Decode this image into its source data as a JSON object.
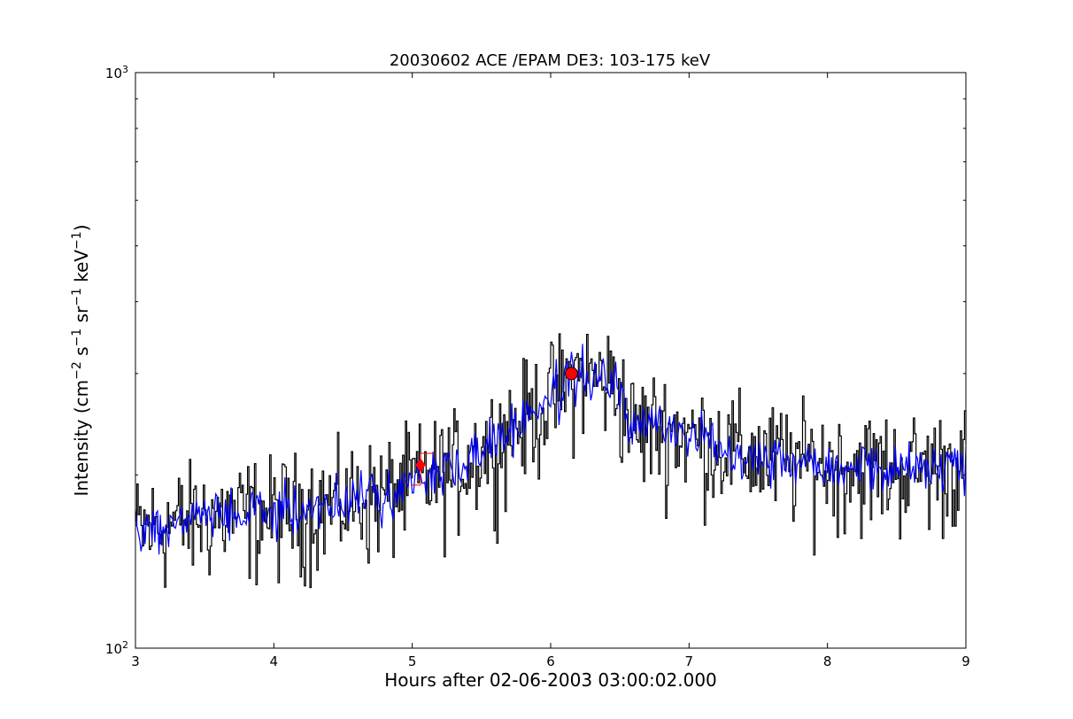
{
  "chart_data": {
    "type": "line",
    "title": "20030602 ACE /EPAM DE3: 103-175 keV",
    "xlabel": "Hours after 02-06-2003 03:00:02.000",
    "ylabel_parts": [
      "Intensity (cm",
      "−2",
      " s",
      "−1",
      " sr",
      "−1",
      " keV",
      "−1",
      ")"
    ],
    "xlim": [
      3,
      9
    ],
    "ylim": [
      100,
      1000
    ],
    "yscale": "log",
    "grid": false,
    "xticks": [
      3,
      4,
      5,
      6,
      7,
      8,
      9
    ],
    "xtick_labels": [
      "3",
      "4",
      "5",
      "6",
      "7",
      "8",
      "9"
    ],
    "ytick_major_labels": [
      {
        "value": 1000,
        "base": "10",
        "exp": "3"
      },
      {
        "value": 100,
        "base": "10",
        "exp": "2"
      }
    ],
    "series": [
      {
        "color": "#000000",
        "style": "steps",
        "trend": [
          [
            3.0,
            160
          ],
          [
            3.5,
            170
          ],
          [
            4.0,
            172
          ],
          [
            4.5,
            180
          ],
          [
            4.8,
            185
          ],
          [
            5.0,
            195
          ],
          [
            5.3,
            205
          ],
          [
            5.6,
            230
          ],
          [
            5.9,
            260
          ],
          [
            6.2,
            300
          ],
          [
            6.45,
            290
          ],
          [
            6.6,
            240
          ],
          [
            6.8,
            245
          ],
          [
            7.0,
            235
          ],
          [
            7.5,
            215
          ],
          [
            8.0,
            210
          ],
          [
            8.5,
            205
          ],
          [
            9.0,
            210
          ]
        ],
        "noise": 0.12
      },
      {
        "color": "#0000ff",
        "style": "line",
        "trend": [
          [
            3.0,
            160
          ],
          [
            3.5,
            170
          ],
          [
            4.0,
            172
          ],
          [
            4.5,
            180
          ],
          [
            4.8,
            185
          ],
          [
            5.0,
            195
          ],
          [
            5.3,
            205
          ],
          [
            5.6,
            230
          ],
          [
            5.9,
            260
          ],
          [
            6.2,
            300
          ],
          [
            6.45,
            290
          ],
          [
            6.6,
            240
          ],
          [
            6.8,
            245
          ],
          [
            7.0,
            235
          ],
          [
            7.5,
            215
          ],
          [
            8.0,
            210
          ],
          [
            8.5,
            205
          ],
          [
            9.0,
            210
          ]
        ],
        "noise": 0.05
      }
    ],
    "markers": [
      {
        "x": 6.15,
        "y": 300,
        "shape": "circle",
        "color": "#ff0000"
      },
      {
        "x": 5.06,
        "y": 208,
        "shape": "diamond",
        "color": "#ff0000"
      }
    ],
    "error_bars": [
      {
        "x": 5.06,
        "y_low": 192,
        "y_high": 218,
        "x_low": 4.99,
        "x_high": 5.16,
        "color": "#ff0000"
      }
    ]
  }
}
